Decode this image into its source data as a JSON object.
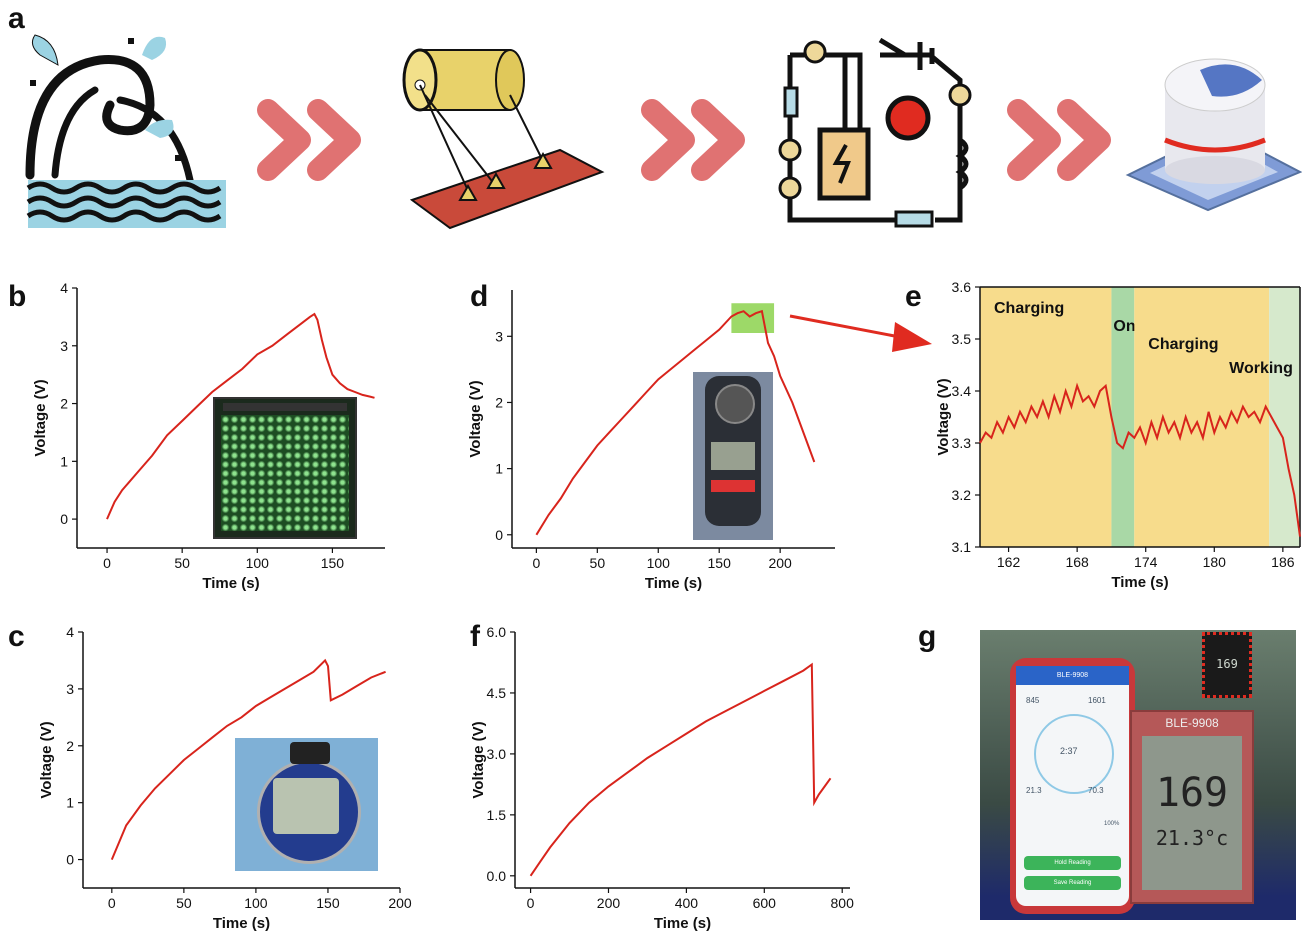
{
  "panels": {
    "a": "a",
    "b": "b",
    "c": "c",
    "d": "d",
    "e": "e",
    "f": "f",
    "g": "g"
  },
  "colors": {
    "trace": "#d8241c",
    "arrow_chevron": "#e07272",
    "charging_band": "#f7dc8c",
    "on_band": "#a9d8a6",
    "working_band": "#d6e9cc",
    "highlight_box": "#8cd24e",
    "callout_arrow": "#e02b20"
  },
  "icons": [
    "ocean-wave-icon",
    "generator-drum-icon",
    "circuit-board-icon",
    "capacitor-icon",
    "double-chevron-icon"
  ],
  "photo_g": {
    "brand": "BLE-9908",
    "phone_values": [
      "845",
      "1601",
      "2:37",
      "21.3",
      "70.3",
      "100%"
    ],
    "phone_buttons": [
      "Hold Reading",
      "Save Reading"
    ],
    "display_reading": "169",
    "display_temp": "21.3°c"
  },
  "chart_data": [
    {
      "id": "b",
      "type": "line",
      "xlabel": "Time (s)",
      "ylabel": "Voltage (V)",
      "xlim": [
        -20,
        185
      ],
      "ylim": [
        -0.5,
        4
      ],
      "xticks": [
        0,
        50,
        100,
        150
      ],
      "yticks": [
        0,
        1,
        2,
        3,
        4
      ],
      "x": [
        0,
        5,
        10,
        20,
        30,
        40,
        50,
        60,
        70,
        80,
        90,
        100,
        110,
        120,
        130,
        135,
        138,
        140,
        143,
        146,
        150,
        155,
        160,
        165,
        170,
        175,
        178
      ],
      "y": [
        0,
        0.3,
        0.5,
        0.8,
        1.1,
        1.45,
        1.7,
        1.95,
        2.2,
        2.4,
        2.6,
        2.85,
        3.0,
        3.2,
        3.4,
        3.5,
        3.55,
        3.45,
        3.1,
        2.8,
        2.5,
        2.35,
        2.25,
        2.2,
        2.15,
        2.12,
        2.1
      ]
    },
    {
      "id": "c",
      "type": "line",
      "xlabel": "Time (s)",
      "ylabel": "Voltage (V)",
      "xlim": [
        -20,
        200
      ],
      "ylim": [
        -0.5,
        4
      ],
      "xticks": [
        0,
        50,
        100,
        150,
        200
      ],
      "yticks": [
        0,
        1,
        2,
        3,
        4
      ],
      "x": [
        0,
        5,
        10,
        20,
        30,
        40,
        50,
        60,
        70,
        80,
        90,
        100,
        110,
        120,
        130,
        140,
        148,
        150,
        152,
        160,
        170,
        180,
        190
      ],
      "y": [
        0,
        0.3,
        0.6,
        0.95,
        1.25,
        1.5,
        1.75,
        1.95,
        2.15,
        2.35,
        2.5,
        2.7,
        2.85,
        3.0,
        3.15,
        3.3,
        3.5,
        3.4,
        2.8,
        2.9,
        3.05,
        3.2,
        3.3
      ]
    },
    {
      "id": "d",
      "type": "line",
      "xlabel": "Time (s)",
      "ylabel": "Voltage (V)",
      "xlim": [
        -20,
        245
      ],
      "ylim": [
        -0.2,
        3.7
      ],
      "xticks": [
        0,
        50,
        100,
        150,
        200
      ],
      "yticks": [
        0,
        1,
        2,
        3
      ],
      "x": [
        0,
        10,
        20,
        30,
        40,
        50,
        60,
        70,
        80,
        90,
        100,
        110,
        120,
        130,
        140,
        150,
        160,
        165,
        170,
        175,
        180,
        185,
        190,
        195,
        200,
        210,
        220,
        228
      ],
      "y": [
        0,
        0.3,
        0.55,
        0.85,
        1.1,
        1.35,
        1.55,
        1.75,
        1.95,
        2.15,
        2.35,
        2.5,
        2.65,
        2.8,
        2.95,
        3.1,
        3.3,
        3.35,
        3.38,
        3.3,
        3.35,
        3.38,
        2.9,
        2.7,
        2.4,
        2.0,
        1.5,
        1.1
      ]
    },
    {
      "id": "e",
      "type": "line",
      "xlabel": "Time (s)",
      "ylabel": "Voltage (V)",
      "xlim": [
        159.5,
        187.5
      ],
      "ylim": [
        3.1,
        3.6
      ],
      "xticks": [
        162,
        168,
        174,
        180,
        186
      ],
      "yticks": [
        3.1,
        3.2,
        3.3,
        3.4,
        3.5,
        3.6
      ],
      "bands": [
        {
          "from": 159.5,
          "to": 171,
          "label": "Charging",
          "kind": "charging"
        },
        {
          "from": 171,
          "to": 173,
          "label": "On",
          "kind": "on"
        },
        {
          "from": 173,
          "to": 184.8,
          "label": "Charging",
          "kind": "charging"
        },
        {
          "from": 184.8,
          "to": 187.5,
          "label": "Working",
          "kind": "working"
        }
      ],
      "x": [
        159.5,
        160,
        160.5,
        161,
        161.5,
        162,
        162.5,
        163,
        163.5,
        164,
        164.5,
        165,
        165.5,
        166,
        166.5,
        167,
        167.5,
        168,
        168.5,
        169,
        169.5,
        170,
        170.5,
        171,
        171.5,
        172,
        172.5,
        173,
        173.5,
        174,
        174.5,
        175,
        175.5,
        176,
        176.5,
        177,
        177.5,
        178,
        178.5,
        179,
        179.5,
        180,
        180.5,
        181,
        181.5,
        182,
        182.5,
        183,
        183.5,
        184,
        184.5,
        185,
        185.5,
        186,
        186.5,
        187,
        187.5
      ],
      "y": [
        3.3,
        3.32,
        3.31,
        3.34,
        3.32,
        3.35,
        3.33,
        3.36,
        3.34,
        3.37,
        3.35,
        3.38,
        3.35,
        3.39,
        3.36,
        3.4,
        3.37,
        3.41,
        3.38,
        3.39,
        3.37,
        3.4,
        3.41,
        3.35,
        3.3,
        3.29,
        3.32,
        3.31,
        3.33,
        3.3,
        3.34,
        3.31,
        3.35,
        3.32,
        3.34,
        3.31,
        3.35,
        3.32,
        3.34,
        3.31,
        3.36,
        3.32,
        3.35,
        3.33,
        3.36,
        3.34,
        3.37,
        3.35,
        3.36,
        3.34,
        3.37,
        3.35,
        3.33,
        3.31,
        3.25,
        3.2,
        3.12
      ]
    },
    {
      "id": "f",
      "type": "line",
      "xlabel": "Time (s)",
      "ylabel": "Voltage (V)",
      "xlim": [
        -40,
        820
      ],
      "ylim": [
        -0.3,
        6.0
      ],
      "xticks": [
        0,
        200,
        400,
        600,
        800
      ],
      "yticks": [
        0.0,
        1.5,
        3.0,
        4.5,
        6.0
      ],
      "ytick_labels": [
        "0.0",
        "1.5",
        "3.0",
        "4.5",
        "6.0"
      ],
      "x": [
        0,
        25,
        50,
        100,
        150,
        200,
        250,
        300,
        350,
        400,
        450,
        500,
        550,
        600,
        650,
        700,
        722,
        728,
        740,
        755,
        770
      ],
      "y": [
        0,
        0.35,
        0.7,
        1.3,
        1.8,
        2.2,
        2.55,
        2.9,
        3.2,
        3.5,
        3.8,
        4.05,
        4.3,
        4.55,
        4.8,
        5.05,
        5.2,
        1.8,
        2.0,
        2.2,
        2.4
      ]
    }
  ]
}
